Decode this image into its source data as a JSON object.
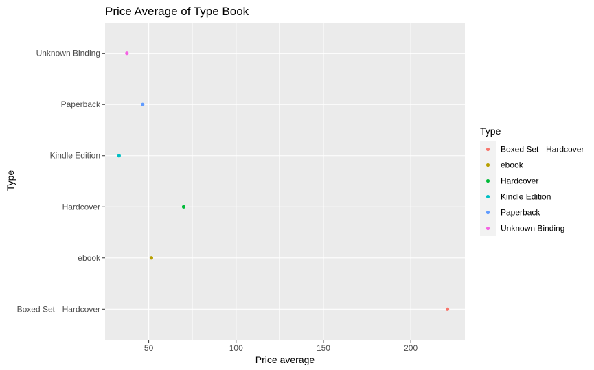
{
  "chart_data": {
    "type": "scatter",
    "title": "Price Average of Type Book",
    "xlabel": "Price average",
    "ylabel": "Type",
    "xlim": [
      25,
      231
    ],
    "x_ticks": [
      50,
      100,
      150,
      200
    ],
    "x_minor_ticks": [
      75,
      125,
      175
    ],
    "categories": [
      "Boxed Set - Hardcover",
      "ebook",
      "Hardcover",
      "Kindle Edition",
      "Paperback",
      "Unknown Binding"
    ],
    "points": [
      {
        "type": "Boxed Set - Hardcover",
        "price_average": 221,
        "color": "#F8766D"
      },
      {
        "type": "ebook",
        "price_average": 51.5,
        "color": "#B79F00"
      },
      {
        "type": "Hardcover",
        "price_average": 70,
        "color": "#00BA38"
      },
      {
        "type": "Kindle Edition",
        "price_average": 33,
        "color": "#00BFC4"
      },
      {
        "type": "Paperback",
        "price_average": 46.5,
        "color": "#619CFF"
      },
      {
        "type": "Unknown Binding",
        "price_average": 37.5,
        "color": "#F564E3"
      }
    ],
    "legend": {
      "title": "Type",
      "position": "right",
      "entries": [
        "Boxed Set - Hardcover",
        "ebook",
        "Hardcover",
        "Kindle Edition",
        "Paperback",
        "Unknown Binding"
      ]
    },
    "grid": true,
    "panel_background": "#EBEBEB",
    "grid_color": "#FFFFFF"
  }
}
